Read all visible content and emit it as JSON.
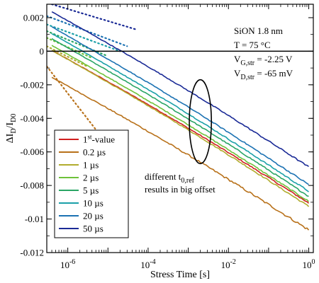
{
  "chart_data": {
    "type": "line",
    "x_scale": "log",
    "xlim": [
      3e-07,
      1.3
    ],
    "ylim": [
      -0.012,
      0.0028
    ],
    "grid": false,
    "xlabel": "Stress Time [s]",
    "ylabel": {
      "main": "ΔI",
      "sub1": "D",
      "sep": "/I",
      "sub2": "D0"
    },
    "x_ticks": [
      {
        "value": 1e-06,
        "base": "10",
        "exp": "-6"
      },
      {
        "value": 0.0001,
        "base": "10",
        "exp": "-4"
      },
      {
        "value": 0.01,
        "base": "10",
        "exp": "-2"
      },
      {
        "value": 1,
        "base": "10",
        "exp": "0"
      }
    ],
    "y_ticks": [
      {
        "value": 0.002,
        "label": "0.002"
      },
      {
        "value": 0,
        "label": "0"
      },
      {
        "value": -0.002,
        "label": "-0.002"
      },
      {
        "value": -0.004,
        "label": "-0.004"
      },
      {
        "value": -0.006,
        "label": "-0.006"
      },
      {
        "value": -0.008,
        "label": "-0.008"
      },
      {
        "value": -0.01,
        "label": "-0.01"
      },
      {
        "value": -0.012,
        "label": "-0.012"
      }
    ],
    "series": [
      {
        "name": "1st-value",
        "color": "#d11f1f",
        "start": 4e-07,
        "y0": 5e-05,
        "y1": -0.00905,
        "noise": 3e-05,
        "slope": 0.00056
      },
      {
        "name": "0.2 µs",
        "color": "#b8711a",
        "start": 4e-07,
        "y0": -0.00155,
        "y1": -0.01065,
        "noise": 5e-05,
        "slope": 0.00056,
        "dotted_start": 3e-07,
        "dotted_end": 1e-05,
        "dotted_y0": -0.0009,
        "dotted_y1": -0.0056
      },
      {
        "name": "1 µs",
        "color": "#b1ac2e",
        "start": 4e-07,
        "y0": 5e-05,
        "y1": -0.00925,
        "noise": 3e-05,
        "slope": 0.00057,
        "dotted_start": 3e-07,
        "dotted_end": 3e-06,
        "dotted_y0": 0.0003,
        "dotted_y1": -0.0009
      },
      {
        "name": "2 µs",
        "color": "#6ec23a",
        "start": 4e-07,
        "y0": 0.00035,
        "y1": -0.00895,
        "noise": 3e-05,
        "slope": 0.00058,
        "dotted_start": 3e-07,
        "dotted_end": 4e-06,
        "dotted_y0": 0.0008,
        "dotted_y1": -0.0004
      },
      {
        "name": "5 µs",
        "color": "#2aa565",
        "start": 4e-07,
        "y0": 0.00075,
        "y1": -0.00865,
        "noise": 3e-05,
        "slope": 0.00059,
        "dotted_start": 3e-07,
        "dotted_end": 1e-05,
        "dotted_y0": 0.0012,
        "dotted_y1": -0.0003
      },
      {
        "name": "10 µs",
        "color": "#1ba0a8",
        "start": 4e-07,
        "y0": 0.00105,
        "y1": -0.00835,
        "noise": 3e-05,
        "slope": 0.0006,
        "dotted_start": 3e-07,
        "dotted_end": 2e-05,
        "dotted_y0": 0.0016,
        "dotted_y1": 0.0
      },
      {
        "name": "20 µs",
        "color": "#1c72b3",
        "start": 4e-07,
        "y0": 0.00145,
        "y1": -0.00795,
        "noise": 3e-05,
        "slope": 0.00061,
        "dotted_start": 3e-07,
        "dotted_end": 3e-05,
        "dotted_y0": 0.0021,
        "dotted_y1": 0.0003
      },
      {
        "name": "50 µs",
        "color": "#1a2a96",
        "start": 4e-07,
        "y0": 0.00235,
        "y1": -0.0069,
        "noise": 3e-05,
        "slope": 0.0006,
        "dotted_start": 4e-07,
        "dotted_end": 5e-05,
        "dotted_y0": 0.0028,
        "dotted_y1": 0.0013
      }
    ],
    "legend": {
      "placement": "bottom-left",
      "items": [
        {
          "text": "1",
          "sup": "st",
          "rest": "-value"
        },
        {
          "text": "0.2 µs"
        },
        {
          "text": "1 µs"
        },
        {
          "text": "2 µs"
        },
        {
          "text": "5 µs"
        },
        {
          "text": "10 µs"
        },
        {
          "text": "20 µs"
        },
        {
          "text": "50 µs"
        }
      ]
    },
    "annotations": {
      "info": [
        {
          "text": "SiON 1.8 nm"
        },
        {
          "text": "T",
          "gap": "     ",
          "rest": "= 75 °C"
        },
        {
          "text": "V",
          "sub": "G,str",
          "rest": " = -2.25 V"
        },
        {
          "text": "V",
          "sub": "D,str",
          "rest": " = -65 mV"
        }
      ],
      "note_line1": {
        "text": "different t",
        "sub": "0,ref"
      },
      "note_line2": "results in big offset",
      "zero_line": true,
      "ellipse": {
        "center_x": 0.002,
        "center_y": -0.0042,
        "x_span_decades": 0.55,
        "y_half": 0.0025
      }
    }
  }
}
